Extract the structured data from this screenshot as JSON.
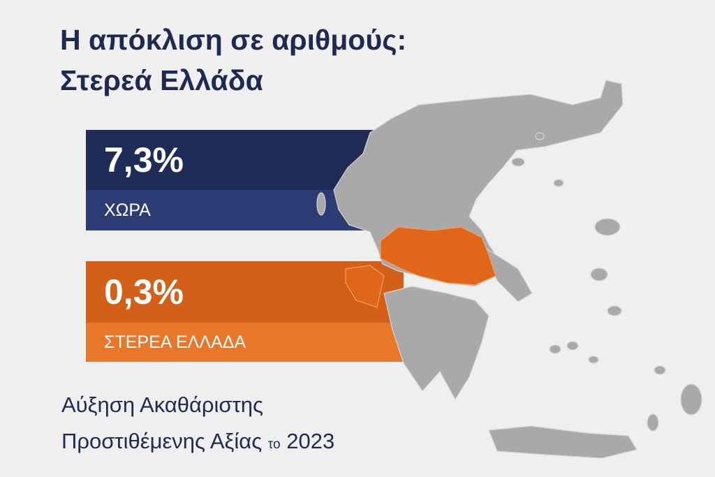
{
  "header": {
    "title_line1": "Η απόκλιση σε αριθμούς:",
    "title_line2": "Στερεά Ελλάδα"
  },
  "cards": [
    {
      "value": "7,3%",
      "label": "ΧΩΡΑ"
    },
    {
      "value": "0,3%",
      "label": "ΣΤΕΡΕΑ ΕΛΛΑΔΑ"
    }
  ],
  "footer": {
    "line1": "Αύξηση Ακαθάριστης",
    "line2": "Προστιθέμενης Αξίας",
    "connector": "το",
    "year": "2023"
  }
}
